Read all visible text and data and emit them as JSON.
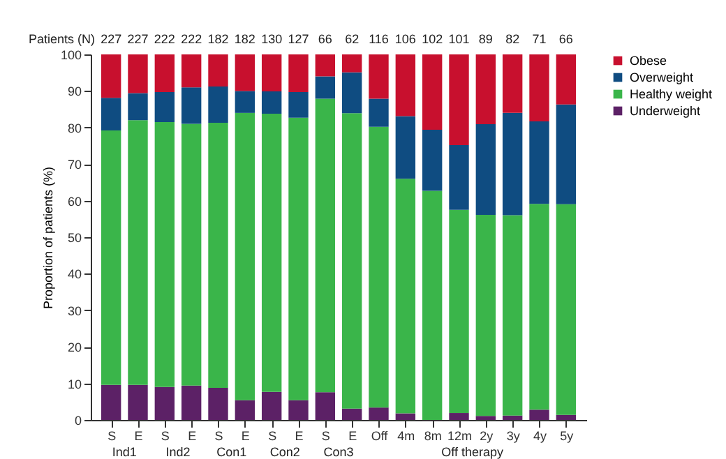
{
  "chart_data": {
    "type": "bar",
    "stacked": true,
    "ylabel": "Proportion of patients (%)",
    "categories": [
      "S",
      "E",
      "S",
      "E",
      "S",
      "E",
      "S",
      "E",
      "S",
      "E",
      "Off",
      "4m",
      "8m",
      "12m",
      "2y",
      "3y",
      "4y",
      "5y"
    ],
    "series": [
      {
        "name": "Underweight",
        "color": "#5c2166",
        "values": [
          9.6,
          9.6,
          9.0,
          9.4,
          8.8,
          5.4,
          7.7,
          5.4,
          7.6,
          3.1,
          3.4,
          1.8,
          0,
          1.9,
          1.1,
          1.2,
          2.8,
          1.4
        ]
      },
      {
        "name": "Healthy weight",
        "color": "#3ab54a",
        "values": [
          69.6,
          72.4,
          72.5,
          71.6,
          72.5,
          78.6,
          76.1,
          77.3,
          80.3,
          80.8,
          76.8,
          64.2,
          62.7,
          55.6,
          55.0,
          54.8,
          56.3,
          57.6
        ]
      },
      {
        "name": "Overweight",
        "color": "#0f4c81",
        "values": [
          8.9,
          7.4,
          8.2,
          10.0,
          9.9,
          6.0,
          6.1,
          7.0,
          6.1,
          11.2,
          7.7,
          17.1,
          16.7,
          17.7,
          24.8,
          28.0,
          22.6,
          27.3
        ]
      },
      {
        "name": "Obese",
        "color": "#c8102e",
        "values": [
          11.9,
          10.6,
          10.3,
          9.0,
          8.8,
          10.0,
          10.1,
          10.3,
          6.0,
          4.9,
          12.1,
          16.9,
          20.6,
          24.8,
          19.1,
          16.0,
          18.3,
          13.7
        ]
      }
    ],
    "annotations": [
      "Patients (N)",
      "227",
      "227",
      "222",
      "222",
      "182",
      "182",
      "130",
      "127",
      "66",
      "62",
      "116",
      "106",
      "102",
      "101",
      "89",
      "82",
      "71",
      "66",
      "Ind1",
      "Ind2",
      "Con1",
      "Con2",
      "Con3",
      "Off therapy"
    ],
    "ylim": [
      0,
      100
    ],
    "yticks": [
      0,
      10,
      20,
      30,
      40,
      50,
      60,
      70,
      80,
      90,
      100
    ],
    "grid": false,
    "legend": "right"
  }
}
